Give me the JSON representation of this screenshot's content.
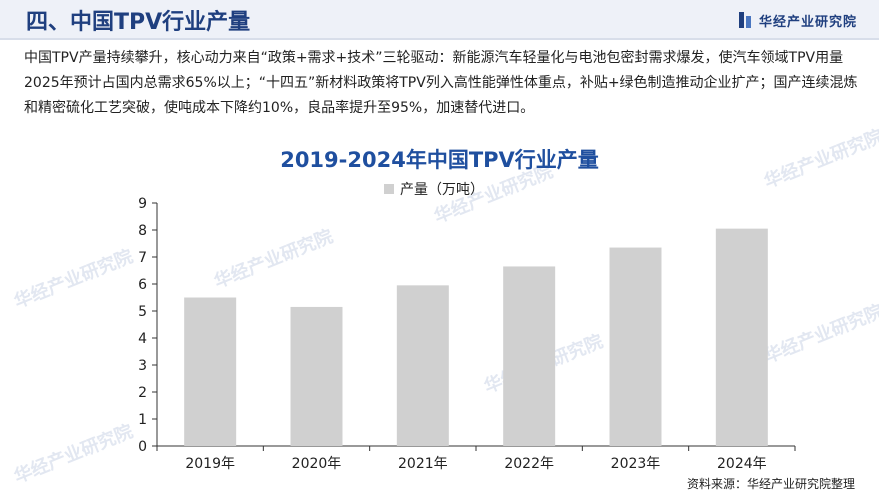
{
  "header": {
    "title": "四、中国TPV行业产量",
    "brand": "华经产业研究院"
  },
  "paragraph": "中国TPV产量持续攀升，核心动力来自“政策+需求+技术”三轮驱动：新能源汽车轻量化与电池包密封需求爆发，使汽车领域TPV用量2025年预计占国内总需求65%以上；“十四五”新材料政策将TPV列入高性能弹性体重点，补贴+绿色制造推动企业扩产；国产连续混炼和精密硫化工艺突破，使吨成本下降约10%，良品率提升至95%，加速替代进口。",
  "watermark_text": "华经产业研究院",
  "source": "资料来源：华经产业研究院整理",
  "colors": {
    "bar": "#d0d0d0",
    "title": "#1f4f9f",
    "header_title": "#1f3f7f",
    "axis": "#333333"
  },
  "chart_data": {
    "type": "bar",
    "title": "2019-2024年中国TPV行业产量",
    "categories": [
      "2019年",
      "2020年",
      "2021年",
      "2022年",
      "2023年",
      "2024年"
    ],
    "series": [
      {
        "name": "产量（万吨）",
        "values": [
          5.5,
          5.15,
          5.95,
          6.65,
          7.35,
          8.05
        ]
      }
    ],
    "ylim": [
      0,
      9
    ],
    "yticks": [
      0,
      1,
      2,
      3,
      4,
      5,
      6,
      7,
      8,
      9
    ],
    "legend_position": "top-center",
    "grid": false
  }
}
